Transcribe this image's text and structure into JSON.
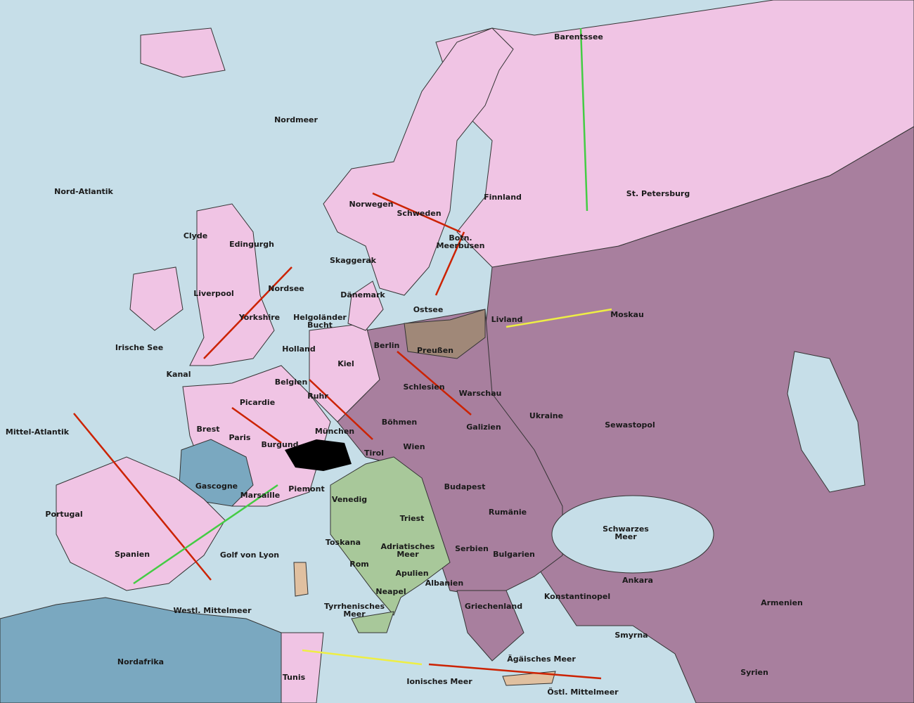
{
  "map": {
    "regions": [
      "Barentssee",
      "Nordmeer",
      "Nord-Atlantik",
      "Finnland",
      "St. Petersburg",
      "Norwegen",
      "Schweden",
      "Clyde",
      "Edingurgh",
      [
        "Botn.",
        "Meerbusen"
      ],
      "Skaggerak",
      "Liverpool",
      "Nordsee",
      "Dänemark",
      "Ostsee",
      "Yorkshire",
      [
        "Helgoländer",
        "Bucht"
      ],
      "Livland",
      "Moskau",
      "Irische See",
      "Holland",
      "Berlin",
      "Preußen",
      "Kiel",
      "Kanal",
      "Belgien",
      "Schlesien",
      "Warschau",
      "Ruhr",
      "Picardie",
      "Ukraine",
      "Brest",
      "Böhmen",
      "Galizien",
      "Sewastopol",
      "Mittel-Atlantik",
      "München",
      "Paris",
      "Burgund",
      "Wien",
      "Tirol",
      "Gascogne",
      "Budapest",
      "Piemont",
      "Marsaille",
      "Venedig",
      "Portugal",
      "Triest",
      "Rumänie",
      [
        "Schwarzes",
        "Meer"
      ],
      "Toskana",
      [
        "Adriatisches",
        "Meer"
      ],
      "Spanien",
      "Golf von Lyon",
      "Serbien",
      "Bulgarien",
      "Rom",
      "Apulien",
      "Albanien",
      "Ankara",
      "Neapel",
      "Konstantinopel",
      "Armenien",
      "Griechenland",
      "Westl. Mittelmeer",
      [
        "Tyrrhenisches",
        "Meer"
      ],
      "Smyrna",
      "Nordafrika",
      "Ägäisches Meer",
      "Syrien",
      "Tunis",
      "Ionisches Meer",
      "Östl. Mittelmeer"
    ]
  }
}
